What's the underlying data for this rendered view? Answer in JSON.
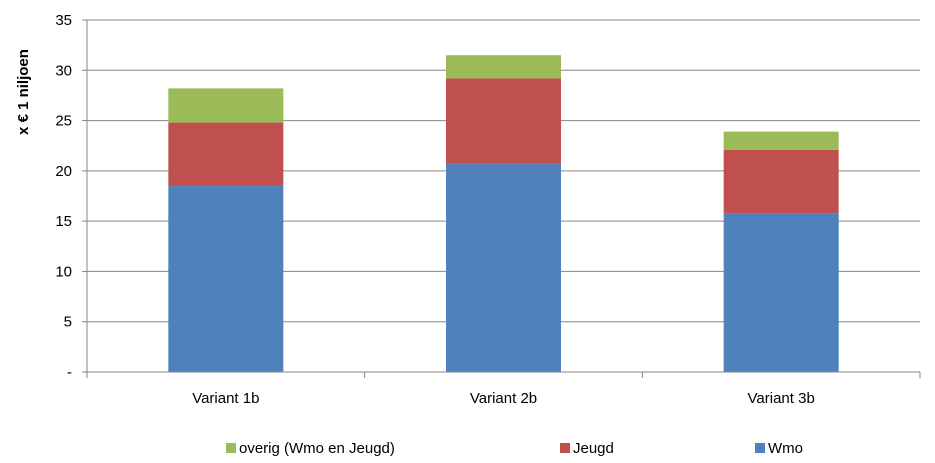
{
  "chart_data": {
    "type": "bar",
    "stacked": true,
    "title": "",
    "xlabel": "",
    "ylabel": "x € 1 niljoen",
    "ylim": [
      0,
      35
    ],
    "yticks": [
      0,
      5,
      10,
      15,
      20,
      25,
      30,
      35
    ],
    "ytick_labels": [
      "-",
      "5",
      "10",
      "15",
      "20",
      "25",
      "30",
      "35"
    ],
    "grid": true,
    "legend_position": "bottom",
    "categories": [
      "Variant 1b",
      "Variant 2b",
      "Variant 3b"
    ],
    "series": [
      {
        "name": "Wmo",
        "color": "#4F81BD",
        "values": [
          18.5,
          20.7,
          15.8
        ]
      },
      {
        "name": "Jeugd",
        "color": "#C0504D",
        "values": [
          6.3,
          8.5,
          6.3
        ]
      },
      {
        "name": "overig (Wmo en Jeugd)",
        "color": "#9BBB59",
        "values": [
          3.4,
          2.3,
          1.8
        ]
      }
    ],
    "legend_order": [
      "overig (Wmo en Jeugd)",
      "Jeugd",
      "Wmo"
    ]
  }
}
